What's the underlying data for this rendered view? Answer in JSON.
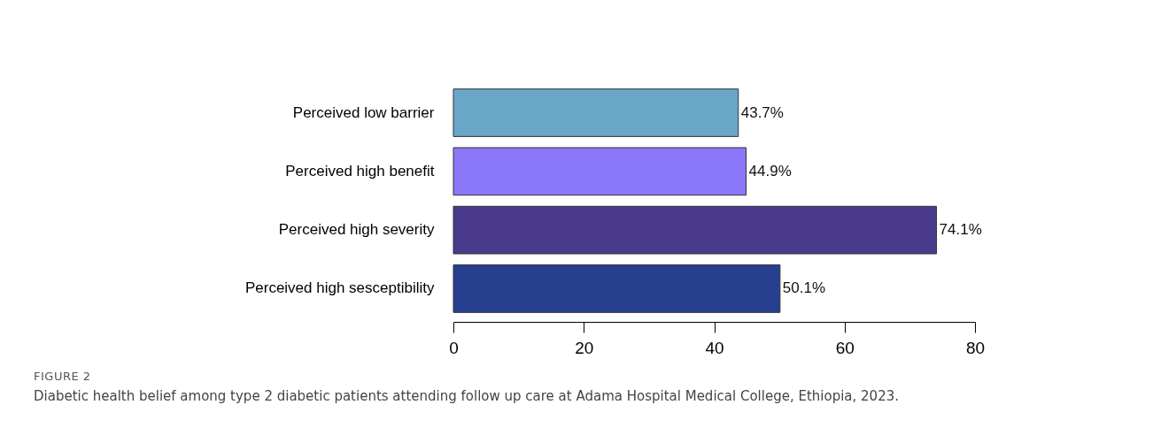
{
  "chart_data": {
    "type": "bar",
    "orientation": "horizontal",
    "categories": [
      "Perceived low barrier",
      "Perceived high benefit",
      "Perceived high severity",
      "Perceived high sesceptibility"
    ],
    "values": [
      43.7,
      44.9,
      74.1,
      50.1
    ],
    "colors": [
      "#6aa6c8",
      "#8a78f8",
      "#4a3a8c",
      "#263f8f"
    ],
    "value_labels": [
      "43.7%",
      "44.9%",
      "74.1%",
      "50.1%"
    ],
    "xlim": [
      0,
      80
    ],
    "xticks": [
      0,
      20,
      40,
      60,
      80
    ],
    "annotations": [
      "FIGURE 2",
      "Diabetic health belief among type 2 diabetic patients attending follow up care at Adama Hospital Medical College, Ethiopia, 2023."
    ]
  }
}
